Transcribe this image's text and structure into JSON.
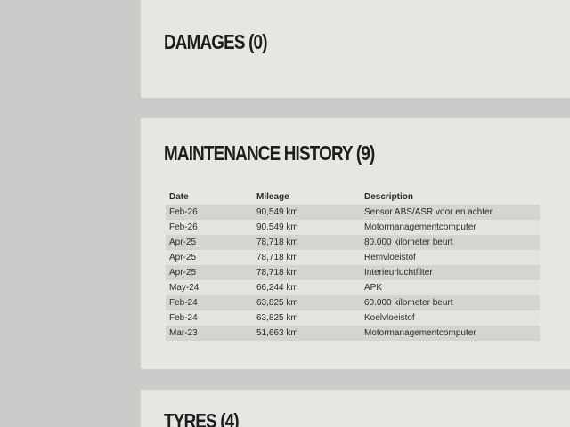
{
  "damages": {
    "title": "DAMAGES (0)"
  },
  "maintenance": {
    "title": "MAINTENANCE HISTORY (9)",
    "columns": [
      "Date",
      "Mileage",
      "Description"
    ],
    "rows": [
      [
        "Feb-26",
        "90,549 km",
        "Sensor ABS/ASR voor en achter"
      ],
      [
        "Feb-26",
        "90,549 km",
        "Motormanagementcomputer"
      ],
      [
        "Apr-25",
        "78,718 km",
        "80.000 kilometer beurt"
      ],
      [
        "Apr-25",
        "78,718 km",
        "Remvloeistof"
      ],
      [
        "Apr-25",
        "78,718 km",
        "Interieurluchtfilter"
      ],
      [
        "May-24",
        "66,244 km",
        "APK"
      ],
      [
        "Feb-24",
        "63,825 km",
        "60.000 kilometer beurt"
      ],
      [
        "Feb-24",
        "63,825 km",
        "Koelvloeistof"
      ],
      [
        "Mar-23",
        "51,663 km",
        "Motormanagementcomputer"
      ]
    ]
  },
  "tyres": {
    "title": "TYRES (4)"
  }
}
